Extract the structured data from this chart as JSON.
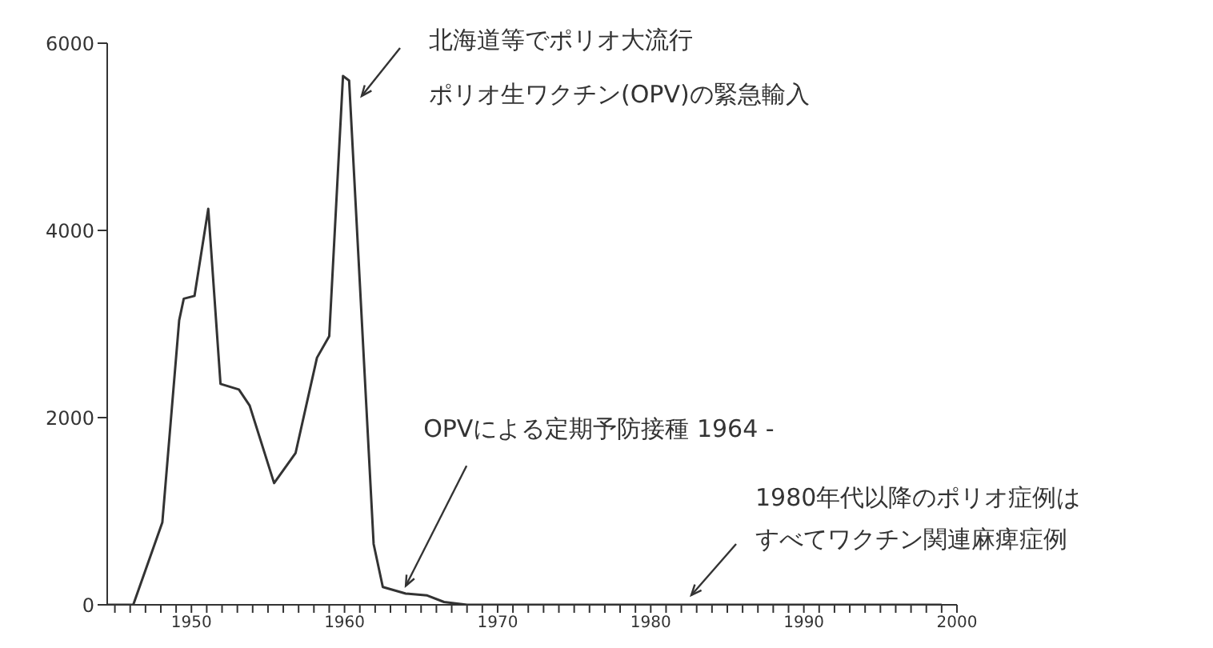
{
  "chart_data": {
    "type": "line",
    "x": [
      1944.5,
      1946.2,
      1948.1,
      1949.2,
      1949.5,
      1950.2,
      1951.1,
      1951.9,
      1953.1,
      1953.8,
      1955.4,
      1956.8,
      1958.2,
      1959.0,
      1959.9,
      1960.3,
      1961.9,
      1962.5,
      1964.0,
      1965.4,
      1966.5,
      1968.0,
      1980.0,
      1999.0
    ],
    "series": [
      {
        "color": "#333333",
        "values": [
          0,
          0,
          880,
          3040,
          3270,
          3300,
          4230,
          2360,
          2300,
          2130,
          1300,
          1620,
          2640,
          2870,
          5650,
          5600,
          650,
          190,
          120,
          100,
          30,
          0,
          0,
          0
        ]
      }
    ],
    "xlim": [
      1944.5,
      2000
    ],
    "xticks": [
      {
        "value": 1945,
        "label": null
      },
      {
        "value": 1946,
        "label": null
      },
      {
        "value": 1947,
        "label": null
      },
      {
        "value": 1948,
        "label": null
      },
      {
        "value": 1949,
        "label": null
      },
      1950,
      {
        "value": 1951,
        "label": null
      },
      {
        "value": 1952,
        "label": null
      },
      {
        "value": 1953,
        "label": null
      },
      {
        "value": 1954,
        "label": null
      },
      {
        "value": 1955,
        "label": null
      },
      {
        "value": 1956,
        "label": null
      },
      {
        "value": 1957,
        "label": null
      },
      {
        "value": 1958,
        "label": null
      },
      {
        "value": 1959,
        "label": null
      },
      1960,
      {
        "value": 1961,
        "label": null
      },
      {
        "value": 1962,
        "label": null
      },
      {
        "value": 1963,
        "label": null
      },
      {
        "value": 1964,
        "label": null
      },
      {
        "value": 1965,
        "label": null
      },
      {
        "value": 1966,
        "label": null
      },
      {
        "value": 1967,
        "label": null
      },
      {
        "value": 1968,
        "label": null
      },
      {
        "value": 1969,
        "label": null
      },
      1970,
      {
        "value": 1971,
        "label": null
      },
      {
        "value": 1972,
        "label": null
      },
      {
        "value": 1973,
        "label": null
      },
      {
        "value": 1974,
        "label": null
      },
      {
        "value": 1975,
        "label": null
      },
      {
        "value": 1976,
        "label": null
      },
      {
        "value": 1977,
        "label": null
      },
      {
        "value": 1978,
        "label": null
      },
      {
        "value": 1979,
        "label": null
      },
      1980,
      {
        "value": 1981,
        "label": null
      },
      {
        "value": 1982,
        "label": null
      },
      {
        "value": 1983,
        "label": null
      },
      {
        "value": 1984,
        "label": null
      },
      {
        "value": 1985,
        "label": null
      },
      {
        "value": 1986,
        "label": null
      },
      {
        "value": 1987,
        "label": null
      },
      {
        "value": 1988,
        "label": null
      },
      {
        "value": 1989,
        "label": null
      },
      1990,
      {
        "value": 1991,
        "label": null
      },
      {
        "value": 1992,
        "label": null
      },
      {
        "value": 1993,
        "label": null
      },
      {
        "value": 1994,
        "label": null
      },
      {
        "value": 1995,
        "label": null
      },
      {
        "value": 1996,
        "label": null
      },
      {
        "value": 1997,
        "label": null
      },
      {
        "value": 1998,
        "label": null
      },
      {
        "value": 1999,
        "label": null
      },
      2000
    ],
    "ylim": [
      0,
      6000
    ],
    "yticks": [
      0,
      2000,
      4000,
      6000
    ],
    "grid": false,
    "legend": false,
    "marker": "none",
    "line_style": "solid",
    "annotations": [
      "北海道等でポリオ大流行",
      "ポリオ生ワクチン(OPV)の緊急輸入",
      {
        "text": "OPVによる定期予防接種 1964 -",
        "x": 1964,
        "y": 100
      },
      "1980年代以降のポリオ症例はすべてワクチン関連麻痺症例"
    ]
  }
}
